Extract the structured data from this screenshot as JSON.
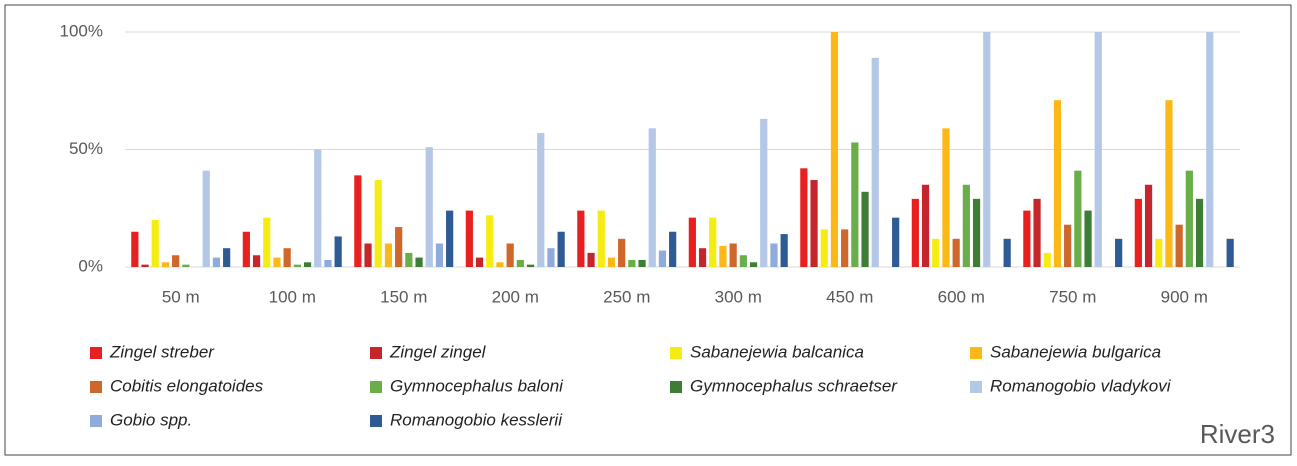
{
  "chart_data": {
    "type": "bar",
    "annotation": "River3",
    "categories": [
      "50 m",
      "100 m",
      "150 m",
      "200 m",
      "250 m",
      "300 m",
      "450 m",
      "600 m",
      "750 m",
      "900 m"
    ],
    "series": [
      {
        "name": "Zingel streber",
        "color": "#e8201f",
        "values": [
          15,
          15,
          39,
          24,
          24,
          21,
          42,
          29,
          24,
          29
        ]
      },
      {
        "name": "Zingel zingel",
        "color": "#c4262c",
        "values": [
          1,
          5,
          10,
          4,
          6,
          8,
          37,
          35,
          29,
          35
        ]
      },
      {
        "name": "Sabanejewia balcanica",
        "color": "#f5ec14",
        "values": [
          20,
          21,
          37,
          22,
          24,
          21,
          16,
          12,
          6,
          12
        ]
      },
      {
        "name": "Sabanejewia bulgarica",
        "color": "#fbb816",
        "values": [
          2,
          4,
          10,
          2,
          4,
          9,
          100,
          59,
          71,
          71
        ]
      },
      {
        "name": "Cobitis elongatoides",
        "color": "#d0672a",
        "values": [
          5,
          8,
          17,
          10,
          12,
          10,
          16,
          12,
          18,
          18
        ]
      },
      {
        "name": "Gymnocephalus baloni",
        "color": "#6aae4a",
        "values": [
          1,
          1,
          6,
          3,
          3,
          5,
          53,
          35,
          41,
          41
        ]
      },
      {
        "name": "Gymnocephalus schraetser",
        "color": "#3e7d35",
        "values": [
          0,
          2,
          4,
          1,
          3,
          2,
          32,
          29,
          24,
          29
        ]
      },
      {
        "name": "Romanogobio vladykovi",
        "color": "#b4c7e7",
        "values": [
          41,
          50,
          51,
          57,
          59,
          63,
          89,
          100,
          100,
          100
        ]
      },
      {
        "name": "Gobio spp.",
        "color": "#8faadc",
        "values": [
          4,
          3,
          10,
          8,
          7,
          10,
          0,
          0,
          0,
          0
        ]
      },
      {
        "name": "Romanogobio kesslerii",
        "color": "#2e5b94",
        "values": [
          8,
          13,
          24,
          15,
          15,
          14,
          21,
          12,
          12,
          12
        ]
      }
    ],
    "ylim": [
      0,
      100
    ],
    "yticks": [
      {
        "value": 0,
        "label": "0%"
      },
      {
        "value": 50,
        "label": "50%"
      },
      {
        "value": 100,
        "label": "100%"
      }
    ],
    "grid": true
  }
}
